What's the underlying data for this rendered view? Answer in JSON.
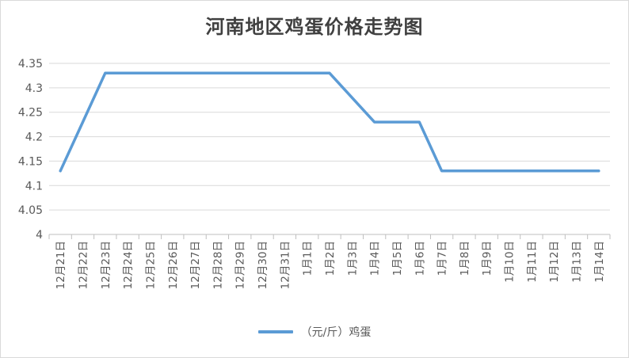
{
  "chart_data": {
    "type": "line",
    "title": "河南地区鸡蛋价格走势图",
    "categories": [
      "12月21日",
      "12月22日",
      "12月23日",
      "12月24日",
      "12月25日",
      "12月26日",
      "12月27日",
      "12月28日",
      "12月29日",
      "12月30日",
      "12月31日",
      "1月1日",
      "1月2日",
      "1月3日",
      "1月4日",
      "1月5日",
      "1月6日",
      "1月7日",
      "1月8日",
      "1月9日",
      "1月10日",
      "1月11日",
      "1月12日",
      "1月13日",
      "1月14日"
    ],
    "series": [
      {
        "name": "（元/斤）鸡蛋",
        "color": "#5b9bd5",
        "values": [
          4.13,
          4.23,
          4.33,
          4.33,
          4.33,
          4.33,
          4.33,
          4.33,
          4.33,
          4.33,
          4.33,
          4.33,
          4.33,
          4.28,
          4.23,
          4.23,
          4.23,
          4.13,
          4.13,
          4.13,
          4.13,
          4.13,
          4.13,
          4.13,
          4.13
        ]
      }
    ],
    "ylim": [
      4,
      4.35
    ],
    "yticks": [
      "4",
      "4.05",
      "4.1",
      "4.15",
      "4.2",
      "4.25",
      "4.3",
      "4.35"
    ],
    "grid": true,
    "legend": "bottom"
  }
}
